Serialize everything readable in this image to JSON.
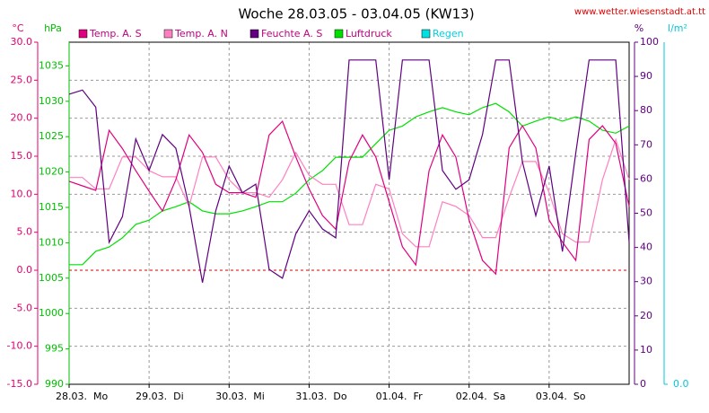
{
  "chart_data": {
    "type": "line",
    "title": "Woche 28.03.05 - 03.04.05 (KW13)",
    "source": "www.wetter.wiesenstadt.at.tt",
    "y_label": "°C",
    "y2_label": "hPa",
    "y3_label": "%",
    "y4_label": "l/m²",
    "x": [
      0,
      4,
      8,
      12,
      16,
      20,
      24,
      28,
      32,
      36,
      40,
      44,
      48,
      52,
      56,
      60,
      64,
      68,
      72,
      76,
      80,
      84,
      88,
      92,
      96,
      100,
      104,
      108,
      112,
      116,
      120,
      124,
      128,
      132,
      136,
      140,
      144,
      148,
      152,
      156,
      160,
      164,
      168
    ],
    "xlim": [
      0,
      168
    ],
    "xticks": [
      {
        "value": 0,
        "label": "28.03.  Mo"
      },
      {
        "value": 24,
        "label": "29.03.  Di"
      },
      {
        "value": 48,
        "label": "30.03.  Mi"
      },
      {
        "value": 72,
        "label": "31.03.  Do"
      },
      {
        "value": 96,
        "label": "01.04.  Fr"
      },
      {
        "value": 120,
        "label": "02.04.  Sa"
      },
      {
        "value": 144,
        "label": "03.04.  So"
      }
    ],
    "ylim": [
      -15,
      30
    ],
    "yticks": [
      {
        "value": -15,
        "label": "-15.0"
      },
      {
        "value": -10,
        "label": "-10.0"
      },
      {
        "value": -5,
        "label": "-5.0"
      },
      {
        "value": 0,
        "label": "0.0"
      },
      {
        "value": 5,
        "label": "5.0"
      },
      {
        "value": 10,
        "label": "10.0"
      },
      {
        "value": 15,
        "label": "15.0"
      },
      {
        "value": 20,
        "label": "20.0"
      },
      {
        "value": 25,
        "label": "25.0"
      },
      {
        "value": 30,
        "label": "30.0"
      }
    ],
    "y2lim": [
      990,
      1038.35
    ],
    "y2ticks": [
      990,
      995,
      1000,
      1005,
      1010,
      1015,
      1020,
      1025,
      1030,
      1035
    ],
    "y3lim": [
      0,
      100
    ],
    "y3ticks": [
      0,
      10,
      20,
      30,
      40,
      50,
      60,
      70,
      80,
      90,
      100
    ],
    "y4lim": [
      0,
      10
    ],
    "y4ticks": [
      {
        "value": 0,
        "label": "0.0"
      }
    ],
    "grid": true,
    "zero_line": true,
    "zero_line_color": "#e00000",
    "axis_colors": {
      "y": "#e0006f",
      "y2": "#00c000",
      "y3": "#600080",
      "y4": "#00c8d8"
    },
    "series": [
      {
        "name": "Temp. A. S",
        "color": "#e0007f",
        "label_color": "#c00080",
        "axis": "y",
        "values": [
          11.7,
          11.1,
          10.5,
          18.4,
          16,
          13.1,
          10.4,
          7.8,
          11.9,
          17.8,
          15.5,
          11.3,
          10.2,
          10.2,
          9.6,
          17.8,
          19.6,
          14.9,
          10.7,
          7.2,
          5.4,
          14.3,
          17.8,
          14.9,
          9.0,
          3.1,
          0.7,
          13.1,
          17.8,
          14.9,
          6.6,
          1.3,
          -0.5,
          16.1,
          19.0,
          16.1,
          6.6,
          3.7,
          1.3,
          17.2,
          19.0,
          16.7,
          8.4
        ]
      },
      {
        "name": "Temp. A. N",
        "color": "#ff80c0",
        "label_color": "#c00080",
        "axis": "y",
        "values": [
          12.2,
          12.2,
          10.7,
          10.7,
          14.9,
          14.9,
          13.1,
          12.3,
          12.3,
          8.4,
          14.9,
          14.9,
          11.9,
          10.2,
          10.2,
          9.6,
          11.9,
          15.5,
          12.5,
          11.3,
          11.3,
          6.0,
          6.0,
          11.3,
          10.7,
          4.8,
          3.1,
          3.1,
          9.0,
          8.4,
          7.2,
          4.3,
          4.3,
          9.6,
          14.3,
          14.3,
          10.2,
          4.8,
          3.7,
          3.7,
          11.9,
          17.2,
          11.9
        ]
      },
      {
        "name": "Feuchte A. S",
        "color": "#600080",
        "label_color": "#c00080",
        "axis": "y3",
        "values": [
          84.8,
          86,
          81,
          41.5,
          49,
          71.7,
          62.5,
          73,
          69,
          52,
          29.7,
          50.7,
          63.8,
          56,
          58.5,
          33.6,
          31,
          44,
          50.7,
          45.4,
          42.8,
          94.8,
          94.8,
          94.8,
          59.8,
          94.8,
          94.8,
          94.8,
          62.5,
          57,
          59.8,
          73,
          94.8,
          94.8,
          65,
          49.3,
          63.8,
          38.8,
          67.7,
          94.8,
          94.8,
          94.8,
          41.5
        ]
      },
      {
        "name": "Luftdruck",
        "color": "#00e000",
        "label_color": "#c00080",
        "axis": "y2",
        "values": [
          1006.9,
          1006.9,
          1008.8,
          1009.4,
          1010.7,
          1012.6,
          1013.2,
          1014.5,
          1015.1,
          1015.8,
          1014.5,
          1014.1,
          1014.1,
          1014.5,
          1015.1,
          1015.8,
          1015.8,
          1017.0,
          1018.9,
          1020.2,
          1022.1,
          1022.1,
          1022.1,
          1024.0,
          1025.9,
          1026.5,
          1027.8,
          1028.5,
          1029.1,
          1028.5,
          1028.1,
          1029.1,
          1029.7,
          1028.5,
          1026.5,
          1027.2,
          1027.8,
          1027.2,
          1027.8,
          1027.2,
          1025.9,
          1025.5,
          1026.5
        ]
      },
      {
        "name": "Regen",
        "color": "#00e0e0",
        "label_color": "#00d0e0",
        "axis": "y4",
        "values": [
          null,
          null,
          null,
          null,
          null,
          null,
          null,
          null,
          null,
          null,
          null,
          null,
          null,
          null,
          null,
          null,
          null,
          null,
          null,
          null,
          null,
          null,
          null,
          null,
          null,
          null,
          null,
          null,
          null,
          null,
          null,
          null,
          null,
          null,
          null,
          null,
          null,
          null,
          null,
          null,
          null,
          null,
          null
        ]
      }
    ]
  }
}
